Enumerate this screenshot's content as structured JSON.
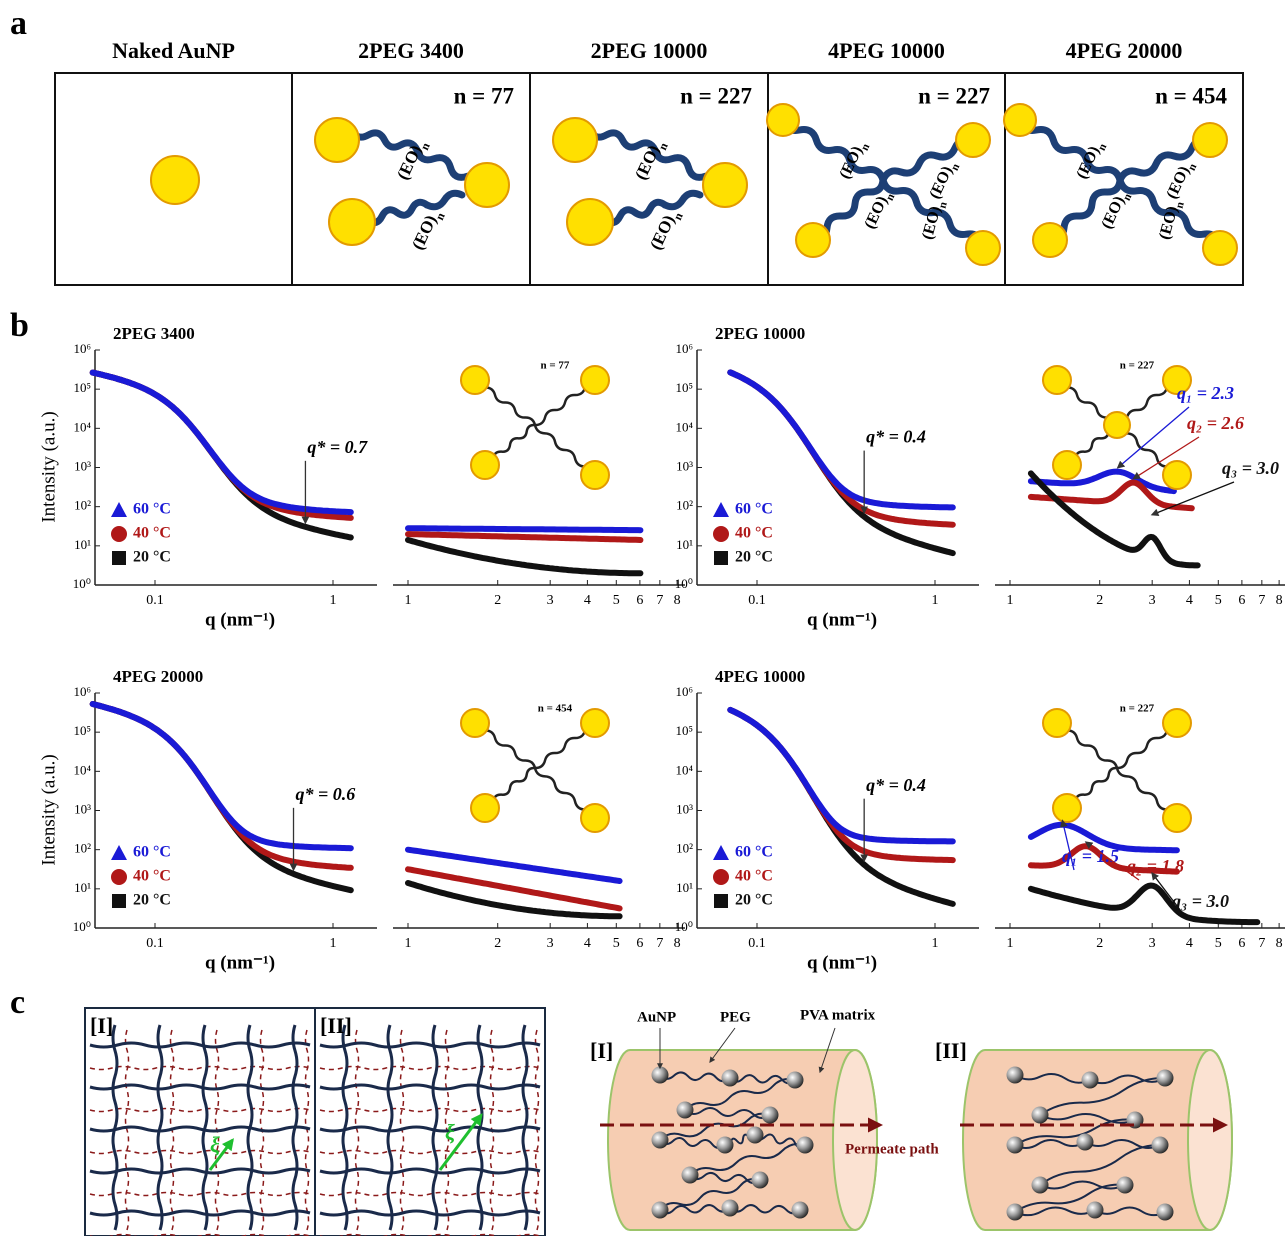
{
  "panel_labels": {
    "a": "a",
    "b": "b",
    "c": "c"
  },
  "panel_a": {
    "columns": [
      {
        "title": "Naked AuNP"
      },
      {
        "title": "2PEG 3400",
        "n": "n = 77"
      },
      {
        "title": "2PEG 10000",
        "n": "n = 227"
      },
      {
        "title": "4PEG 10000",
        "n": "n = 227"
      },
      {
        "title": "4PEG 20000",
        "n": "n = 454"
      }
    ],
    "chain_label": "(EO)",
    "chain_subscript": "n"
  },
  "panel_b": {
    "y_label": "Intensity (a.u.)",
    "x_label": "q (nm⁻¹)",
    "y_ticks": [
      {
        "value": 1,
        "label": "10⁰"
      },
      {
        "value": 10,
        "label": "10¹"
      },
      {
        "value": 100,
        "label": "10²"
      },
      {
        "value": 1000,
        "label": "10³"
      },
      {
        "value": 10000,
        "label": "10⁴"
      },
      {
        "value": 100000,
        "label": "10⁵"
      },
      {
        "value": 1000000,
        "label": "10⁶"
      }
    ],
    "x_ticks_left": [
      0.1,
      1
    ],
    "x_ticks_right": [
      1,
      2,
      3,
      4,
      5,
      6,
      7,
      8
    ],
    "legend": [
      {
        "label": "60 °C",
        "color": "#1a1ad6",
        "marker": "triangle"
      },
      {
        "label": "40 °C",
        "color": "#b01818",
        "marker": "circle"
      },
      {
        "label": "20 °C",
        "color": "#111111",
        "marker": "square"
      }
    ],
    "plots": [
      {
        "title": "2PEG 3400",
        "q_star": "q* = 0.7",
        "inset_n": "n = 77",
        "peaks": []
      },
      {
        "title": "2PEG 10000",
        "q_star": "q* = 0.4",
        "inset_n": "n = 227",
        "peaks": [
          "q₁ = 2.3",
          "q₂ = 2.6",
          "q₃ = 3.0"
        ]
      },
      {
        "title": "4PEG 20000",
        "q_star": "q* = 0.6",
        "inset_n": "n = 454",
        "peaks": []
      },
      {
        "title": "4PEG 10000",
        "q_star": "q* = 0.4",
        "inset_n": "n = 227",
        "peaks": [
          "q₁ = 1.5",
          "q₂ = 1.8",
          "q₃ = 3.0"
        ]
      }
    ]
  },
  "panel_c": {
    "grid_labels": [
      "[I]",
      "[II]"
    ],
    "xi": "ξ",
    "annotations": {
      "aunp": "AuNP",
      "peg": "PEG",
      "matrix": "PVA matrix"
    },
    "cylinder_labels": [
      "[I]",
      "[II]"
    ],
    "permeate": "Permeate path"
  }
}
